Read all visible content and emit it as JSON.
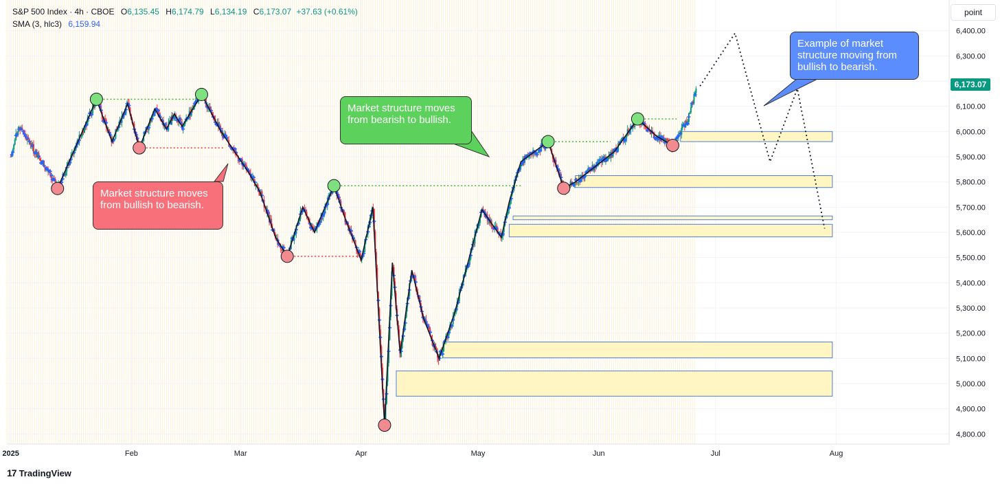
{
  "header": {
    "symbol": "S&P 500 Index · 4h · CBOE",
    "o_label": "O",
    "o_value": "6,135.45",
    "h_label": "H",
    "h_value": "6,174.79",
    "l_label": "L",
    "l_value": "6,134.19",
    "c_label": "C",
    "c_value": "6,173.07",
    "change": "+37.63 (+0.61%)",
    "sma_label": "SMA (3, hlc3)",
    "sma_value": "6,159.94"
  },
  "unit_button": "point",
  "price_tag": "6,173.07",
  "brand": {
    "logo": "17",
    "name": "TradingView"
  },
  "colors": {
    "up": "#089981",
    "down": "#f23645",
    "sma": "#2962ff",
    "zone_fill": "#fff6c4",
    "zone_border": "#4f7fd9",
    "swing_high": "#7ee07e",
    "swing_low": "#f28b8f"
  },
  "chart_data": {
    "type": "line",
    "title": "",
    "ylim": [
      4760,
      6440
    ],
    "y_ticks": [
      "6,400.00",
      "6,300.00",
      "6,200.00",
      "6,100.00",
      "6,000.00",
      "5,900.00",
      "5,800.00",
      "5,700.00",
      "5,600.00",
      "5,500.00",
      "5,400.00",
      "5,300.00",
      "5,200.00",
      "5,100.00",
      "5,000.00",
      "4,900.00",
      "4,800.00"
    ],
    "x_ticks": [
      "2025",
      "Feb",
      "Mar",
      "Apr",
      "May",
      "Jun",
      "Jul",
      "Aug"
    ],
    "x_tick_dates": [
      "2025-01-01",
      "2025-02-01",
      "2025-03-01",
      "2025-04-01",
      "2025-05-01",
      "2025-06-01",
      "2025-07-01",
      "2025-08-01"
    ],
    "xlim": [
      "2024-12-31",
      "2025-08-30"
    ],
    "swing_path": [
      [
        "2025-01-13",
        5774
      ],
      [
        "2025-01-23",
        6128
      ],
      [
        "2025-01-27",
        5960
      ],
      [
        "2025-01-31",
        6110
      ],
      [
        "2025-02-03",
        5935
      ],
      [
        "2025-02-07",
        6090
      ],
      [
        "2025-02-10",
        6010
      ],
      [
        "2025-02-12",
        6070
      ],
      [
        "2025-02-14",
        6020
      ],
      [
        "2025-02-19",
        6147
      ],
      [
        "2025-02-24",
        6000
      ],
      [
        "2025-03-03",
        5840
      ],
      [
        "2025-03-06",
        5760
      ],
      [
        "2025-03-10",
        5580
      ],
      [
        "2025-03-13",
        5505
      ],
      [
        "2025-03-17",
        5700
      ],
      [
        "2025-03-20",
        5600
      ],
      [
        "2025-03-25",
        5785
      ],
      [
        "2025-03-28",
        5650
      ],
      [
        "2025-04-01",
        5490
      ],
      [
        "2025-04-04",
        5700
      ],
      [
        "2025-04-07",
        4835
      ],
      [
        "2025-04-09",
        5480
      ],
      [
        "2025-04-11",
        5120
      ],
      [
        "2025-04-14",
        5450
      ],
      [
        "2025-04-17",
        5260
      ],
      [
        "2025-04-21",
        5100
      ],
      [
        "2025-04-25",
        5280
      ],
      [
        "2025-05-02",
        5690
      ],
      [
        "2025-05-07",
        5580
      ],
      [
        "2025-05-09",
        5720
      ],
      [
        "2025-05-12",
        5880
      ],
      [
        "2025-05-19",
        5960
      ],
      [
        "2025-05-23",
        5775
      ],
      [
        "2025-05-26",
        5800
      ],
      [
        "2025-06-05",
        5920
      ],
      [
        "2025-06-11",
        6050
      ],
      [
        "2025-06-16",
        5980
      ],
      [
        "2025-06-20",
        5945
      ]
    ],
    "projection_path": [
      [
        "2025-06-27",
        6180
      ],
      [
        "2025-07-06",
        6390
      ],
      [
        "2025-07-15",
        5880
      ],
      [
        "2025-07-22",
        6170
      ],
      [
        "2025-07-29",
        5615
      ]
    ],
    "swing_highs": [
      [
        "2025-01-23",
        6128
      ],
      [
        "2025-02-19",
        6147
      ],
      [
        "2025-03-25",
        5785
      ],
      [
        "2025-05-19",
        5960
      ],
      [
        "2025-06-11",
        6050
      ]
    ],
    "swing_lows": [
      [
        "2025-01-13",
        5774
      ],
      [
        "2025-02-03",
        5935
      ],
      [
        "2025-03-13",
        5505
      ],
      [
        "2025-04-07",
        4835
      ],
      [
        "2025-05-23",
        5775
      ],
      [
        "2025-06-20",
        5945
      ]
    ],
    "green_levels": [
      {
        "y": 6128,
        "from": "2025-01-23",
        "to": "2025-02-19"
      },
      {
        "y": 5785,
        "from": "2025-03-25",
        "to": "2025-05-12"
      },
      {
        "y": 5960,
        "from": "2025-05-19",
        "to": "2025-06-04"
      },
      {
        "y": 6050,
        "from": "2025-06-11",
        "to": "2025-06-21"
      }
    ],
    "red_levels": [
      {
        "y": 5935,
        "from": "2025-02-03",
        "to": "2025-02-25"
      },
      {
        "y": 5505,
        "from": "2025-03-13",
        "to": "2025-04-02"
      }
    ],
    "zones": [
      {
        "from": "2025-06-22",
        "to": "2025-07-31",
        "y1": 5960,
        "y2": 6000
      },
      {
        "from": "2025-05-26",
        "to": "2025-07-31",
        "y1": 5778,
        "y2": 5825
      },
      {
        "from": "2025-05-10",
        "to": "2025-07-31",
        "y1": 5650,
        "y2": 5665
      },
      {
        "from": "2025-05-09",
        "to": "2025-07-31",
        "y1": 5582,
        "y2": 5632
      },
      {
        "from": "2025-04-22",
        "to": "2025-07-31",
        "y1": 5102,
        "y2": 5165
      },
      {
        "from": "2025-04-10",
        "to": "2025-07-31",
        "y1": 4950,
        "y2": 5050
      }
    ],
    "annotations": [
      {
        "text": "Market structure moves from bullish to bearish.",
        "color": "red"
      },
      {
        "text": "Market structure moves from bearish to bullish.",
        "color": "green"
      },
      {
        "text": "Example of market structure moving from bullish to bearish.",
        "color": "blue"
      }
    ]
  }
}
